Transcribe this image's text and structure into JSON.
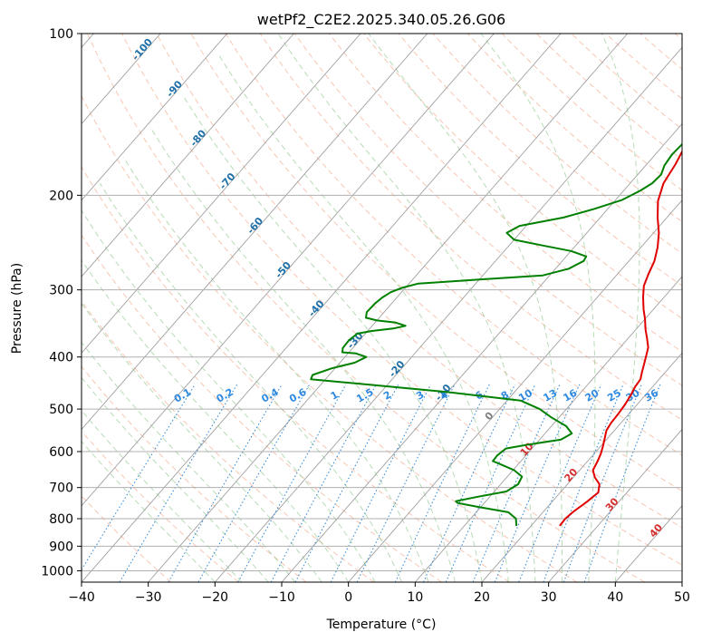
{
  "chart_data": {
    "type": "line",
    "title": "wetPf2_C2E2.2025.340.05.26.G06",
    "xlabel": "Temperature (°C)",
    "ylabel": "Pressure (hPa)",
    "xlim": [
      -40,
      50
    ],
    "ylim": [
      1050,
      100
    ],
    "y_scale": "log",
    "x_ticks": [
      -40,
      -30,
      -20,
      -10,
      0,
      10,
      20,
      30,
      40,
      50
    ],
    "y_ticks": [
      100,
      200,
      300,
      400,
      500,
      600,
      700,
      800,
      900,
      1000
    ],
    "grid": true,
    "colors": {
      "temperature": "#e00000",
      "dewpoint": "#008000",
      "isotherm": "#a0a0a0",
      "dry_adiabat": "#f4a080",
      "moist_adiabat": "#90c890",
      "mixing_ratio": "#3a8fd8",
      "isotherm_label": "#1f6fa8",
      "mixing_label": "#2f8ae0"
    },
    "series": [
      {
        "key": "temperature",
        "points": [
          [
            24.3,
            825
          ],
          [
            24.2,
            800
          ],
          [
            24.5,
            775
          ],
          [
            25.2,
            745
          ],
          [
            25.7,
            715
          ],
          [
            24.8,
            690
          ],
          [
            23.2,
            670
          ],
          [
            22,
            650
          ],
          [
            21.5,
            625
          ],
          [
            21,
            605
          ],
          [
            20.3,
            585
          ],
          [
            19.5,
            565
          ],
          [
            18.8,
            548
          ],
          [
            18.5,
            530
          ],
          [
            18.4,
            510
          ],
          [
            18.2,
            490
          ],
          [
            17.8,
            470
          ],
          [
            17.4,
            455
          ],
          [
            17.2,
            440
          ],
          [
            16.5,
            427
          ],
          [
            15.8,
            413
          ],
          [
            15,
            398
          ],
          [
            14.2,
            384
          ],
          [
            12.9,
            370
          ],
          [
            11.4,
            355
          ],
          [
            10,
            340
          ],
          [
            8.5,
            326
          ],
          [
            6.9,
            310
          ],
          [
            5.5,
            295
          ],
          [
            4.6,
            280
          ],
          [
            3.8,
            265
          ],
          [
            2.5,
            250
          ],
          [
            0.8,
            235
          ],
          [
            -1.4,
            220
          ],
          [
            -3.5,
            205
          ],
          [
            -5,
            190
          ],
          [
            -5.7,
            175
          ],
          [
            -6.8,
            160
          ],
          [
            -8,
            145
          ],
          [
            -9,
            130
          ],
          [
            -10.8,
            118
          ],
          [
            -12.2,
            108
          ],
          [
            -13.5,
            100
          ]
        ]
      },
      {
        "key": "dewpoint",
        "points": [
          [
            17.8,
            825
          ],
          [
            16.8,
            800
          ],
          [
            14.8,
            778
          ],
          [
            10,
            762
          ],
          [
            6,
            748
          ],
          [
            5.5,
            742
          ],
          [
            8.2,
            728
          ],
          [
            11.8,
            712
          ],
          [
            12.6,
            690
          ],
          [
            12.2,
            668
          ],
          [
            10.2,
            650
          ],
          [
            7.6,
            635
          ],
          [
            5.8,
            625
          ],
          [
            5.7,
            610
          ],
          [
            6.1,
            592
          ],
          [
            9,
            582
          ],
          [
            13.2,
            570
          ],
          [
            14,
            555
          ],
          [
            12.2,
            538
          ],
          [
            8.8,
            518
          ],
          [
            6,
            500
          ],
          [
            2,
            482
          ],
          [
            -10,
            465
          ],
          [
            -25,
            448
          ],
          [
            -32.2,
            440
          ],
          [
            -32.5,
            432
          ],
          [
            -30.5,
            420
          ],
          [
            -27.8,
            410
          ],
          [
            -26.8,
            400
          ],
          [
            -28.8,
            394
          ],
          [
            -31,
            392
          ],
          [
            -31.5,
            385
          ],
          [
            -31.6,
            372
          ],
          [
            -31.2,
            362
          ],
          [
            -29.5,
            358
          ],
          [
            -26.5,
            354
          ],
          [
            -25,
            350
          ],
          [
            -27,
            345
          ],
          [
            -30,
            342
          ],
          [
            -32,
            338
          ],
          [
            -32.6,
            330
          ],
          [
            -32.5,
            318
          ],
          [
            -32.2,
            310
          ],
          [
            -31.6,
            303
          ],
          [
            -30.4,
            297
          ],
          [
            -28.6,
            292
          ],
          [
            -20,
            287
          ],
          [
            -11,
            282
          ],
          [
            -8,
            274
          ],
          [
            -6.8,
            265
          ],
          [
            -7,
            260
          ],
          [
            -10,
            254
          ],
          [
            -15,
            248
          ],
          [
            -20,
            242
          ],
          [
            -22,
            235
          ],
          [
            -21,
            228
          ],
          [
            -15.5,
            220
          ],
          [
            -12,
            212
          ],
          [
            -9,
            204
          ],
          [
            -7.5,
            196
          ],
          [
            -6.7,
            190
          ],
          [
            -6.5,
            183
          ],
          [
            -7.2,
            176
          ],
          [
            -7.5,
            168
          ],
          [
            -7.3,
            160
          ],
          [
            -6.2,
            152
          ],
          [
            -5.5,
            145
          ],
          [
            -5.7,
            137
          ],
          [
            -6.2,
            130
          ],
          [
            -6.3,
            123
          ],
          [
            -6,
            116
          ],
          [
            -4.6,
            110
          ],
          [
            -2.7,
            105
          ],
          [
            -1.4,
            100
          ]
        ]
      }
    ],
    "isotherm_labels": [
      {
        "t": -100,
        "p": 108,
        "text": "-100"
      },
      {
        "t": -90,
        "p": 128,
        "text": "-90"
      },
      {
        "t": -80,
        "p": 158,
        "text": "-80"
      },
      {
        "t": -70,
        "p": 190,
        "text": "-70"
      },
      {
        "t": -60,
        "p": 230,
        "text": "-60"
      },
      {
        "t": -50,
        "p": 278,
        "text": "-50"
      },
      {
        "t": -40,
        "p": 328,
        "text": "-40"
      },
      {
        "t": -30,
        "p": 376,
        "text": "-30"
      },
      {
        "t": -20,
        "p": 425,
        "text": "-20"
      },
      {
        "t": -10,
        "p": 470,
        "text": "-10"
      }
    ],
    "isotherm_positive_labels": [
      {
        "t": 0,
        "p": 520,
        "text": "0",
        "color": "#808080"
      },
      {
        "t": 10,
        "p": 600,
        "text": "10",
        "color": "#d43030"
      },
      {
        "t": 20,
        "p": 670,
        "text": "20",
        "color": "#d43030"
      },
      {
        "t": 30,
        "p": 760,
        "text": "30",
        "color": "#d43030"
      },
      {
        "t": 40,
        "p": 850,
        "text": "40",
        "color": "#d43030"
      }
    ],
    "mixing_ratio_values": [
      0.1,
      0.2,
      0.4,
      0.6,
      1,
      1.5,
      2,
      3,
      4,
      6,
      8,
      10,
      13,
      16,
      20,
      25,
      30,
      36
    ],
    "mixing_ratio_label_text": [
      "0.1",
      "0.2",
      "0.4",
      "0.6",
      "1",
      "1.5",
      "2",
      "3",
      "4",
      "6",
      "8",
      "10",
      "13",
      "16",
      "20",
      "25",
      "30",
      "36"
    ]
  }
}
